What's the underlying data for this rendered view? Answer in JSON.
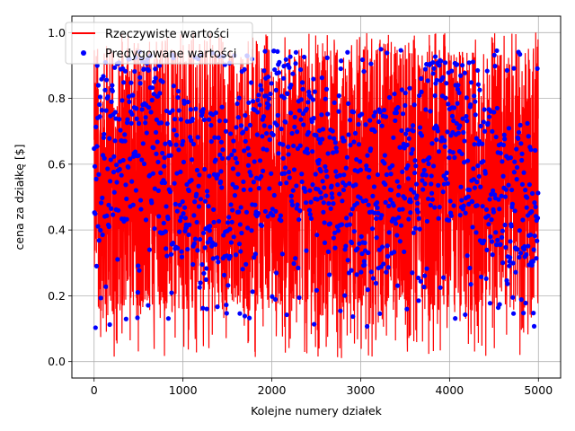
{
  "chart_data": {
    "type": "line",
    "xlabel": "Kolejne numery działek",
    "ylabel": "cena za działkę [$]",
    "xlim": [
      -250,
      5250
    ],
    "ylim": [
      -0.05,
      1.05
    ],
    "x_ticks": [
      0,
      1000,
      2000,
      3000,
      4000,
      5000
    ],
    "x_tick_labels": [
      "0",
      "1000",
      "2000",
      "3000",
      "4000",
      "5000"
    ],
    "y_ticks": [
      0.0,
      0.2,
      0.4,
      0.6,
      0.8,
      1.0
    ],
    "y_tick_labels": [
      "0.0",
      "0.2",
      "0.4",
      "0.6",
      "0.8",
      "1.0"
    ],
    "grid": true,
    "legend_position": "top-left",
    "n_points": 5000,
    "series": [
      {
        "name": "Rzeczywiste wartości",
        "kind": "line",
        "color": "#ff0000",
        "summary": "dense oscillating series over x 0-5000, values spanning 0.0-1.0, mostly 0.2-0.95",
        "sample_x": [
          0,
          250,
          500,
          750,
          1000,
          1250,
          1500,
          1750,
          2000,
          2250,
          2500,
          2750,
          3000,
          3250,
          3500,
          3750,
          4000,
          4250,
          4500,
          4750,
          5000
        ],
        "sample_y": [
          0.55,
          0.1,
          0.9,
          0.3,
          0.75,
          0.2,
          0.95,
          0.4,
          0.05,
          0.85,
          0.35,
          0.7,
          0.15,
          0.9,
          0.45,
          0.25,
          0.8,
          0.3,
          0.95,
          0.2,
          0.6
        ]
      },
      {
        "name": "Predygowane wartości",
        "kind": "scatter",
        "color": "#0000ff",
        "summary": "dense point cloud over x 0-5000, values spanning about 0.03-0.95, concentrated 0.3-0.85",
        "sample_x": [
          0,
          250,
          500,
          750,
          1000,
          1250,
          1500,
          1750,
          2000,
          2250,
          2500,
          2750,
          3000,
          3250,
          3500,
          3750,
          4000,
          4250,
          4500,
          4750,
          5000
        ],
        "sample_y": [
          0.6,
          0.2,
          0.85,
          0.35,
          0.7,
          0.25,
          0.9,
          0.45,
          0.15,
          0.8,
          0.4,
          0.65,
          0.2,
          0.85,
          0.5,
          0.3,
          0.75,
          0.35,
          0.9,
          0.25,
          0.55
        ]
      }
    ]
  }
}
